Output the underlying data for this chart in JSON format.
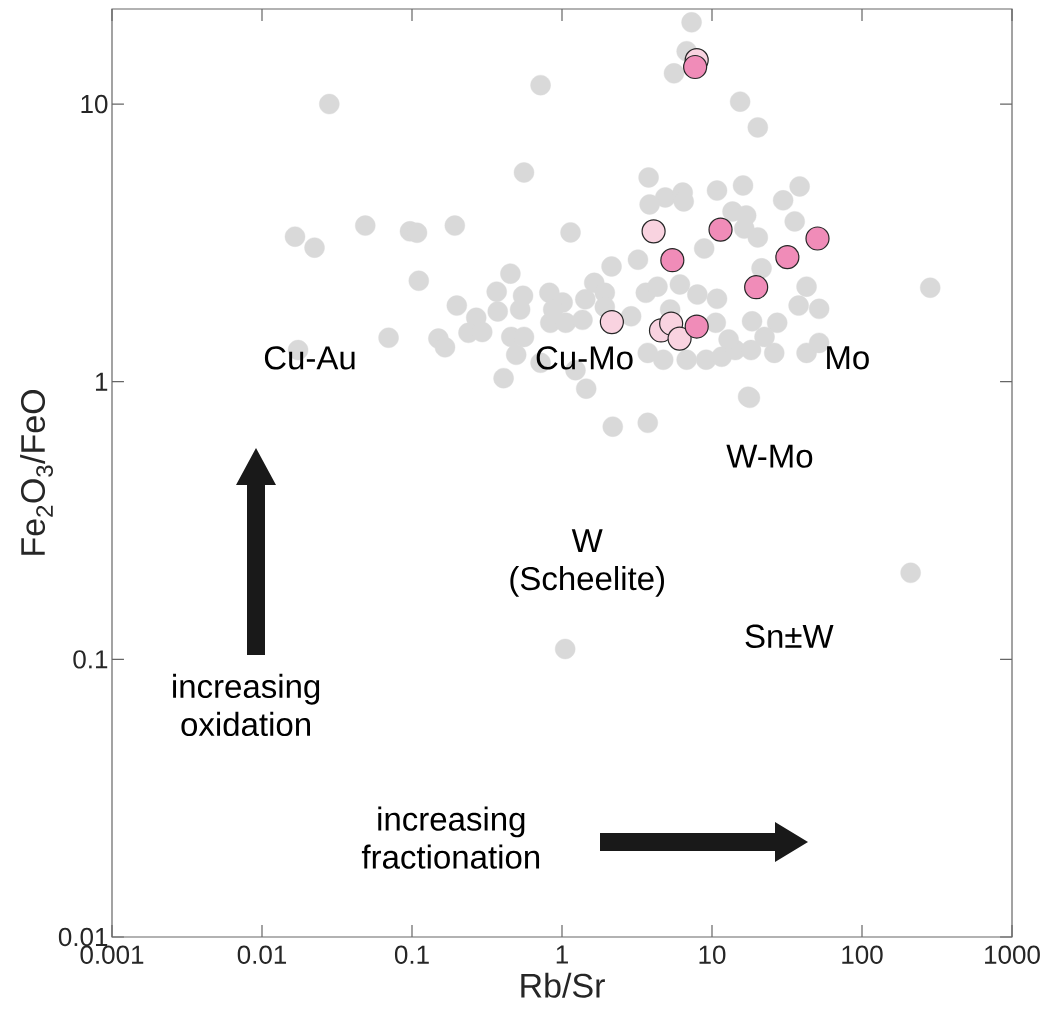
{
  "chart_data": {
    "type": "scatter",
    "xlabel": "Rb/Sr",
    "ylabel": "Fe$_{2}$O$_{3}$/FeO",
    "log": "xy",
    "marker": "circle",
    "xlim": [
      0.001,
      1000
    ],
    "ylim": [
      0.01,
      22
    ],
    "xticks": [
      0.001,
      0.01,
      0.1,
      1,
      10,
      100,
      1000
    ],
    "yticks": [
      0.01,
      0.1,
      1,
      10
    ],
    "annotations": [
      "Cu-Au",
      "Cu-Mo",
      "Mo",
      "W-Mo",
      "W (Scheelite)",
      "Sn±W",
      "increasing oxidation",
      "increasing fractionation"
    ],
    "series": [
      {
        "color": "#d9d9d9",
        "x": [
          0.0281,
          0.72,
          7.31,
          6.78,
          5.58,
          15.4,
          20.2,
          0.0166,
          0.0224,
          0.0488,
          0.097,
          0.108,
          0.193,
          0.111,
          0.558,
          1.14,
          0.408,
          2.18,
          3.73,
          17.4,
          211,
          1.05,
          1.45,
          0.0174,
          0.0698,
          0.199,
          0.453,
          0.367,
          0.373,
          0.268,
          0.238,
          0.294,
          0.15,
          0.166,
          0.55,
          0.526,
          0.824,
          1.01,
          2.14,
          1.64,
          1.93,
          1.43,
          0.836,
          0.459,
          0.558,
          0.495,
          0.72,
          1.23,
          1.06,
          1.37,
          0.874,
          1.93,
          3.78,
          4.88,
          6.38,
          6.48,
          3.84,
          10.8,
          16.1,
          38.4,
          29.8,
          13.7,
          16.9,
          16.4,
          20.2,
          35.6,
          8.87,
          21.4,
          42.7,
          285,
          37.8,
          51.8,
          27.2,
          18.5,
          10.8,
          7.99,
          6.11,
          3.62,
          3.21,
          2.89,
          3.73,
          4.73,
          6.78,
          9.14,
          11.6,
          14.3,
          18.2,
          26.0,
          42.7,
          51.8,
          17.9,
          10.6,
          12.9,
          5.26,
          4.33,
          22.4
        ],
        "values": [
          10,
          11.7,
          19.7,
          15.5,
          12.9,
          10.2,
          8.24,
          3.33,
          3.04,
          3.65,
          3.48,
          3.44,
          3.65,
          2.31,
          5.67,
          3.45,
          1.03,
          0.689,
          0.711,
          0.883,
          0.205,
          0.109,
          0.944,
          1.3,
          1.44,
          1.88,
          2.45,
          2.11,
          1.79,
          1.7,
          1.5,
          1.51,
          1.43,
          1.33,
          2.04,
          1.82,
          2.09,
          1.93,
          2.6,
          2.27,
          2.09,
          1.98,
          1.63,
          1.45,
          1.45,
          1.25,
          1.17,
          1.1,
          1.63,
          1.67,
          1.82,
          1.86,
          5.44,
          4.61,
          4.8,
          4.46,
          4.35,
          4.88,
          5.09,
          5.05,
          4.5,
          4.1,
          3.97,
          3.56,
          3.31,
          3.78,
          3.02,
          2.56,
          2.2,
          2.18,
          1.88,
          1.83,
          1.63,
          1.65,
          1.99,
          2.06,
          2.24,
          2.09,
          2.75,
          1.72,
          1.27,
          1.2,
          1.2,
          1.2,
          1.23,
          1.3,
          1.3,
          1.27,
          1.27,
          1.38,
          0.875,
          1.63,
          1.42,
          1.82,
          2.2,
          1.45
        ]
      },
      {
        "color": "#f9d3e0",
        "x": [
          4.08,
          2.15,
          4.57,
          5.34,
          6.08,
          7.91
        ],
        "values": [
          3.48,
          1.64,
          1.53,
          1.62,
          1.43,
          14.4
        ]
      },
      {
        "color": "#f08cb8",
        "x": [
          11.4,
          5.44,
          50.5,
          31.8,
          19.7,
          7.91,
          7.72
        ],
        "values": [
          3.53,
          2.74,
          3.28,
          2.81,
          2.19,
          1.58,
          13.6
        ]
      }
    ]
  }
}
